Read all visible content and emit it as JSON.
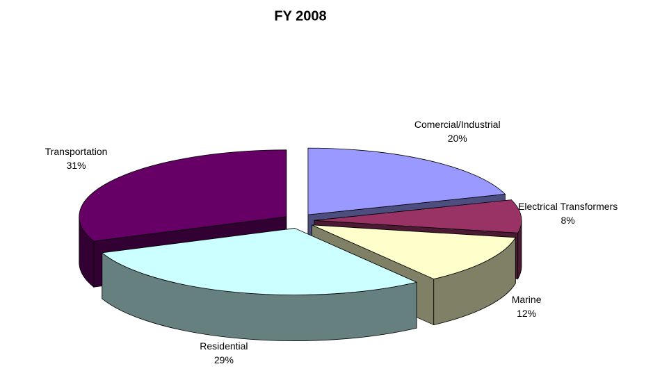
{
  "chart_data": {
    "type": "pie3d",
    "title": "FY 2008",
    "categories": [
      "Comercial/Industrial",
      "Electrical Transformers",
      "Marine",
      "Residential",
      "Transportation"
    ],
    "values": [
      20,
      8,
      12,
      29,
      31
    ],
    "value_labels": [
      "20%",
      "8%",
      "12%",
      "29%",
      "31%"
    ],
    "colors": [
      "#9999ff",
      "#993366",
      "#ffffcc",
      "#ccffff",
      "#660066"
    ]
  }
}
